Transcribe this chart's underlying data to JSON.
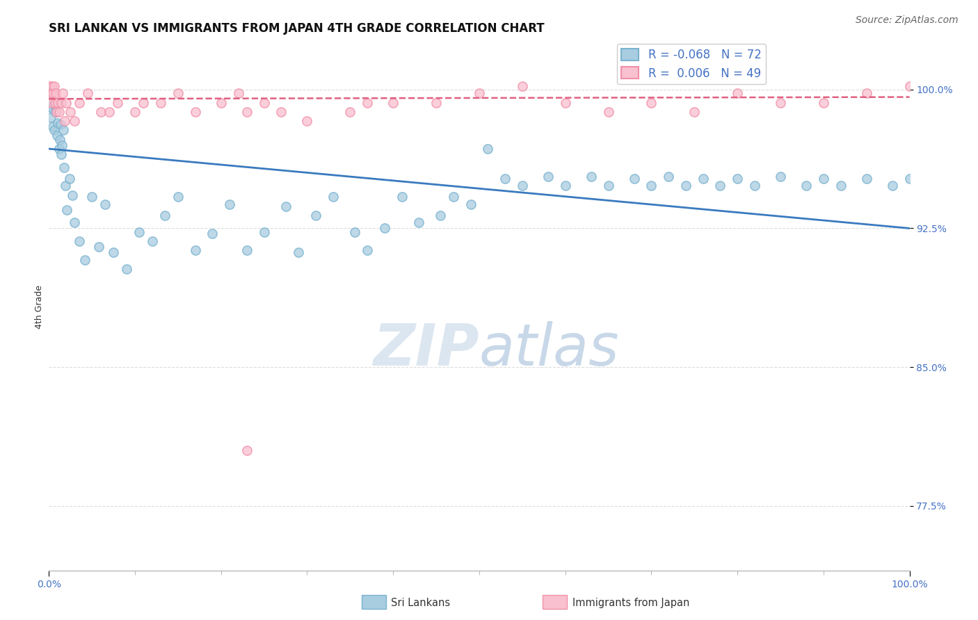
{
  "title": "SRI LANKAN VS IMMIGRANTS FROM JAPAN 4TH GRADE CORRELATION CHART",
  "source": "Source: ZipAtlas.com",
  "ylabel": "4th Grade",
  "legend_sri": "Sri Lankans",
  "legend_imm": "Immigrants from Japan",
  "legend_r_sri": "R = -0.068",
  "legend_n_sri": "N = 72",
  "legend_r_imm": "R =  0.006",
  "legend_n_imm": "N = 49",
  "sri_color": "#a8cce0",
  "sri_edge_color": "#7ab3d0",
  "imm_color": "#f9c0cf",
  "imm_edge_color": "#f090a8",
  "sri_trend_color": "#3a7abf",
  "imm_trend_color": "#e06080",
  "tick_color": "#4472c4",
  "watermark_color": "#dce6f0",
  "background_color": "#ffffff",
  "grid_color": "#dddddd",
  "xlim": [
    0.0,
    100.0
  ],
  "ylim": [
    74.0,
    102.5
  ],
  "yticks": [
    77.5,
    85.0,
    92.5,
    100.0
  ],
  "sri_scatter_x": [
    0.15,
    0.25,
    0.35,
    0.45,
    0.55,
    0.65,
    0.75,
    0.85,
    0.95,
    1.05,
    1.15,
    1.25,
    1.35,
    1.45,
    1.55,
    1.65,
    1.75,
    1.9,
    2.1,
    2.4,
    2.7,
    3.0,
    3.5,
    4.2,
    5.0,
    5.8,
    6.5,
    7.5,
    9.0,
    10.5,
    12.0,
    13.5,
    15.0,
    17.0,
    19.0,
    21.0,
    23.0,
    25.0,
    27.5,
    29.0,
    31.0,
    33.0,
    35.5,
    37.0,
    39.0,
    41.0,
    43.0,
    45.5,
    47.0,
    49.0,
    51.0,
    53.0,
    55.0,
    58.0,
    60.0,
    63.0,
    65.0,
    68.0,
    70.0,
    72.0,
    74.0,
    76.0,
    78.0,
    80.0,
    82.0,
    85.0,
    88.0,
    90.0,
    92.0,
    95.0,
    98.0,
    100.0
  ],
  "sri_scatter_y": [
    99.1,
    98.5,
    99.0,
    98.0,
    99.2,
    97.8,
    98.8,
    99.3,
    97.5,
    98.2,
    96.8,
    97.3,
    98.1,
    96.5,
    97.0,
    97.8,
    95.8,
    94.8,
    93.5,
    95.2,
    94.3,
    92.8,
    91.8,
    90.8,
    94.2,
    91.5,
    93.8,
    91.2,
    90.3,
    92.3,
    91.8,
    93.2,
    94.2,
    91.3,
    92.2,
    93.8,
    91.3,
    92.3,
    93.7,
    91.2,
    93.2,
    94.2,
    92.3,
    91.3,
    92.5,
    94.2,
    92.8,
    93.2,
    94.2,
    93.8,
    96.8,
    95.2,
    94.8,
    95.3,
    94.8,
    95.3,
    94.8,
    95.2,
    94.8,
    95.3,
    94.8,
    95.2,
    94.8,
    95.2,
    94.8,
    95.3,
    94.8,
    95.2,
    94.8,
    95.2,
    94.8,
    95.2
  ],
  "imm_scatter_x": [
    0.1,
    0.2,
    0.3,
    0.4,
    0.5,
    0.6,
    0.7,
    0.8,
    0.9,
    1.0,
    1.2,
    1.4,
    1.6,
    1.8,
    2.0,
    2.5,
    3.0,
    3.5,
    4.5,
    6.0,
    8.0,
    10.0,
    13.0,
    15.0,
    17.0,
    20.0,
    23.0,
    25.0,
    30.0,
    35.0,
    37.0,
    40.0,
    45.0,
    50.0,
    55.0,
    60.0,
    65.0,
    70.0,
    75.0,
    80.0,
    85.0,
    90.0,
    95.0,
    100.0,
    27.0,
    22.0,
    11.0,
    7.0,
    23.0
  ],
  "imm_scatter_y": [
    100.2,
    99.8,
    99.3,
    100.2,
    99.8,
    100.2,
    99.3,
    99.8,
    98.8,
    99.3,
    98.8,
    99.3,
    99.8,
    98.3,
    99.3,
    98.8,
    98.3,
    99.3,
    99.8,
    98.8,
    99.3,
    98.8,
    99.3,
    99.8,
    98.8,
    99.3,
    98.8,
    99.3,
    98.3,
    98.8,
    99.3,
    99.3,
    99.3,
    99.8,
    100.2,
    99.3,
    98.8,
    99.3,
    98.8,
    99.8,
    99.3,
    99.3,
    99.8,
    100.2,
    98.8,
    99.8,
    99.3,
    98.8,
    80.5
  ],
  "sri_trend_x": [
    0.0,
    100.0
  ],
  "sri_trend_y": [
    96.8,
    92.5
  ],
  "imm_trend_x": [
    0.0,
    100.0
  ],
  "imm_trend_y": [
    99.5,
    99.6
  ],
  "title_fontsize": 12,
  "source_fontsize": 10,
  "legend_fontsize": 12,
  "axis_label_fontsize": 9,
  "tick_fontsize": 10,
  "watermark_fontsize": 60,
  "marker_size": 90
}
